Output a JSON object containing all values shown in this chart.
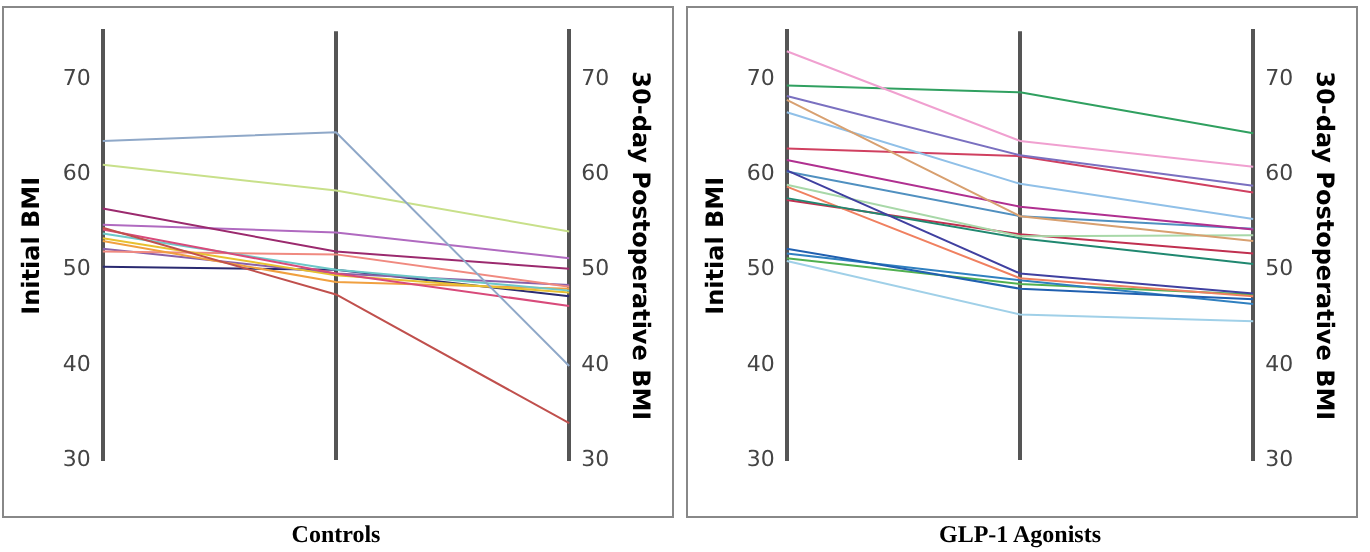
{
  "chart_data": [
    {
      "type": "line",
      "xlabel": "Controls",
      "ylabel": "Initial BMI",
      "y2label": "30-day Postoperative BMI",
      "categories": [
        null,
        null,
        null
      ],
      "ylim": [
        30,
        75
      ],
      "y2lim": [
        30,
        75
      ],
      "yticks": [
        30,
        40,
        50,
        60,
        70
      ],
      "y2ticks": [
        30,
        40,
        50,
        60,
        70
      ],
      "grid": "x",
      "legend": false,
      "marker": "none",
      "series": [
        {
          "color": "#8fa8c8",
          "values": [
            63.5,
            64.4,
            39.9
          ]
        },
        {
          "color": "#c8e08a",
          "values": [
            61.0,
            58.3,
            54.0
          ]
        },
        {
          "color": "#9b2a6e",
          "values": [
            56.4,
            51.9,
            50.1
          ]
        },
        {
          "color": "#b06ac0",
          "values": [
            54.7,
            53.9,
            51.2
          ]
        },
        {
          "color": "#c0504d",
          "values": [
            54.4,
            47.4,
            33.9
          ]
        },
        {
          "color": "#d84a7a",
          "values": [
            54.2,
            49.6,
            46.2
          ]
        },
        {
          "color": "#6cc8c8",
          "values": [
            53.8,
            50.0,
            47.8
          ]
        },
        {
          "color": "#e8c030",
          "values": [
            53.3,
            49.4,
            47.6
          ]
        },
        {
          "color": "#f0a040",
          "values": [
            53.0,
            48.7,
            48.0
          ]
        },
        {
          "color": "#f08a80",
          "values": [
            51.9,
            51.6,
            48.2
          ]
        },
        {
          "color": "#8a60a8",
          "values": [
            52.2,
            49.6,
            48.4
          ]
        },
        {
          "color": "#2a2a70",
          "values": [
            50.3,
            50.0,
            47.2
          ]
        }
      ]
    },
    {
      "type": "line",
      "xlabel": "GLP-1 Agonists",
      "ylabel": "Initial BMI",
      "y2label": "30-day Postoperative BMI",
      "categories": [
        null,
        null,
        null
      ],
      "ylim": [
        30,
        75
      ],
      "y2lim": [
        30,
        75
      ],
      "yticks": [
        30,
        40,
        50,
        60,
        70
      ],
      "y2ticks": [
        30,
        40,
        50,
        60,
        70
      ],
      "grid": "x",
      "legend": false,
      "marker": "none",
      "series": [
        {
          "color": "#f0a0d0",
          "values": [
            72.9,
            63.5,
            60.8
          ]
        },
        {
          "color": "#30a060",
          "values": [
            69.3,
            68.6,
            64.3
          ]
        },
        {
          "color": "#7a70c0",
          "values": [
            68.2,
            62.0,
            58.8
          ]
        },
        {
          "color": "#d8a070",
          "values": [
            67.8,
            55.6,
            53.0
          ]
        },
        {
          "color": "#90c0e8",
          "values": [
            66.5,
            59.0,
            55.3
          ]
        },
        {
          "color": "#d04060",
          "values": [
            62.7,
            61.9,
            58.1
          ]
        },
        {
          "color": "#b03090",
          "values": [
            61.5,
            56.6,
            54.2
          ]
        },
        {
          "color": "#4040a0",
          "values": [
            60.4,
            49.6,
            47.5
          ]
        },
        {
          "color": "#5090c0",
          "values": [
            60.3,
            55.6,
            54.3
          ]
        },
        {
          "color": "#a8d8a8",
          "values": [
            58.9,
            53.5,
            53.6
          ]
        },
        {
          "color": "#208870",
          "values": [
            57.5,
            53.3,
            50.6
          ]
        },
        {
          "color": "#f08060",
          "values": [
            58.7,
            49.1,
            47.2
          ]
        },
        {
          "color": "#c03050",
          "values": [
            57.3,
            53.7,
            51.7
          ]
        },
        {
          "color": "#2060b0",
          "values": [
            52.2,
            48.0,
            46.9
          ]
        },
        {
          "color": "#3080c0",
          "values": [
            51.7,
            48.9,
            46.4
          ]
        },
        {
          "color": "#50b050",
          "values": [
            51.2,
            48.5,
            47.4
          ]
        },
        {
          "color": "#a0d0e8",
          "values": [
            50.9,
            45.3,
            44.6
          ]
        }
      ]
    }
  ]
}
